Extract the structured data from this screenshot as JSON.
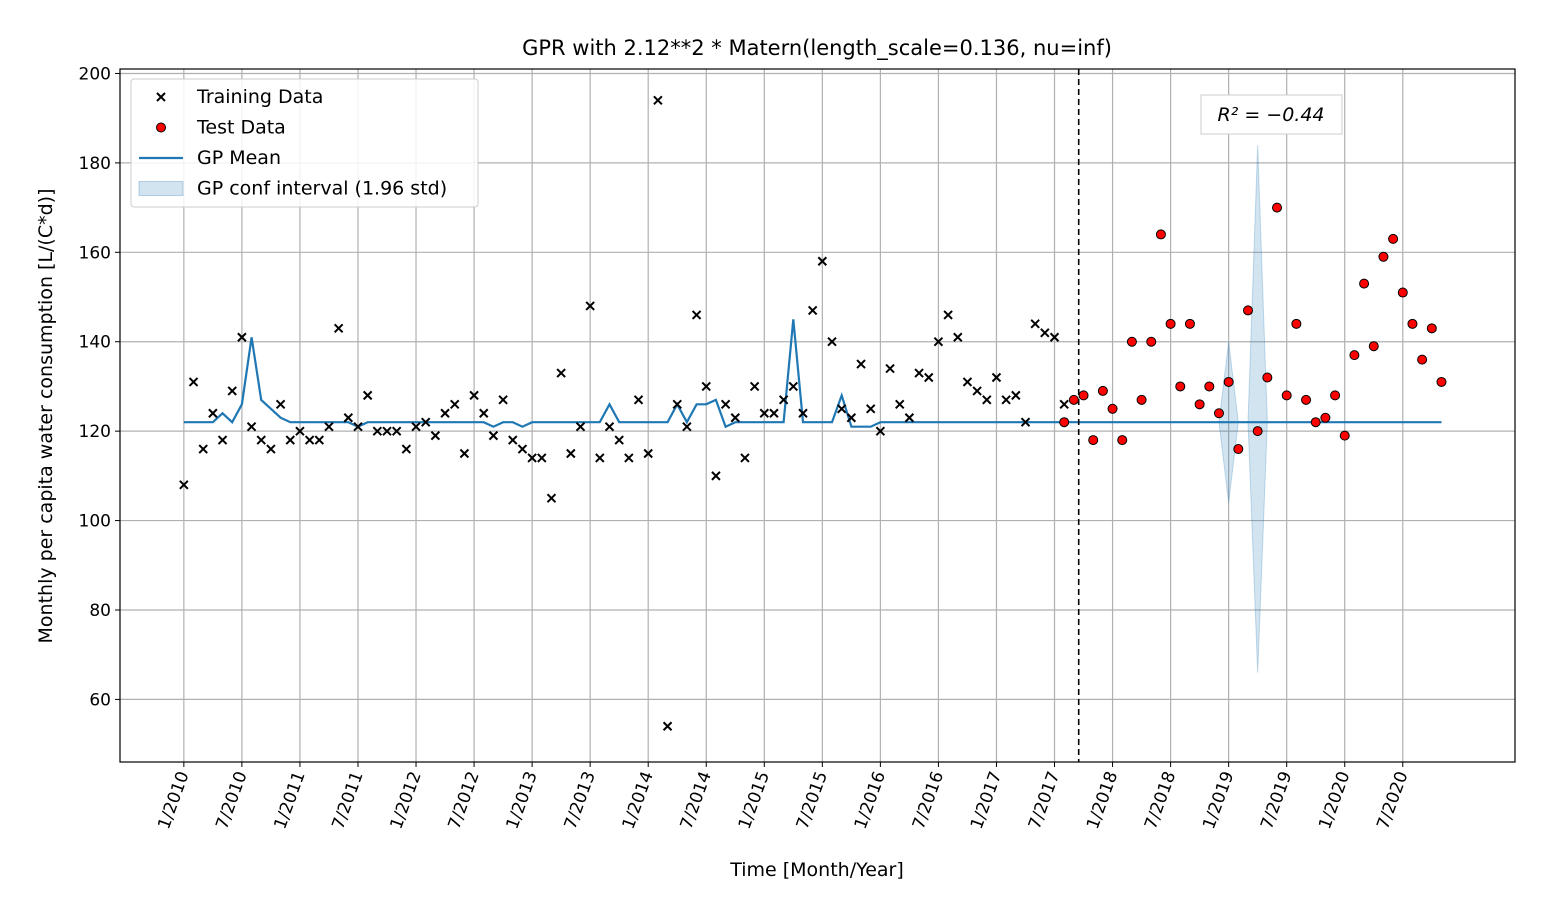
{
  "chart_data": {
    "type": "line",
    "title": "GPR with 2.12**2 * Matern(length_scale=0.136, nu=inf)",
    "xlabel": "Time [Month/Year]",
    "ylabel": "Monthly per capita water consumption [L/(C*d)]",
    "ylim": [
      46,
      201
    ],
    "y_ticks": [
      60,
      80,
      100,
      120,
      140,
      160,
      180,
      200
    ],
    "x_tick_labels": [
      "1/2010",
      "7/2010",
      "1/2011",
      "7/2011",
      "1/2012",
      "7/2012",
      "1/2013",
      "7/2013",
      "1/2014",
      "7/2014",
      "1/2015",
      "7/2015",
      "1/2016",
      "7/2016",
      "1/2017",
      "7/2017",
      "1/2018",
      "7/2018",
      "1/2019",
      "7/2019",
      "1/2020",
      "7/2020"
    ],
    "x_unit": "month index from 1/2010",
    "xlim": [
      -6.6,
      137.6
    ],
    "grid": true,
    "legend": {
      "location": "upper left",
      "entries": [
        {
          "label": "Training Data",
          "marker": "x",
          "color": "#000000"
        },
        {
          "label": "Test Data",
          "marker": "o",
          "color": "#ff0000"
        },
        {
          "label": "GP Mean",
          "marker": "line",
          "color": "#1f77b4"
        },
        {
          "label": "GP conf interval (1.96 std)",
          "marker": "patch",
          "color": "#1f77b4"
        }
      ]
    },
    "annotation": "R² = −0.44",
    "split_x": 92.5,
    "series": [
      {
        "name": "Training Data",
        "kind": "scatter",
        "start_x": 0,
        "values": [
          108,
          131,
          116,
          124,
          118,
          129,
          141,
          121,
          118,
          116,
          126,
          118,
          120,
          118,
          118,
          121,
          143,
          123,
          121,
          128,
          120,
          120,
          120,
          116,
          121,
          122,
          119,
          124,
          126,
          115,
          128,
          124,
          119,
          127,
          118,
          116,
          114,
          114,
          105,
          133,
          115,
          121,
          148,
          114,
          121,
          118,
          114,
          127,
          115,
          194,
          54,
          126,
          121,
          146,
          130,
          110,
          126,
          123,
          114,
          130,
          124,
          124,
          127,
          130,
          124,
          147,
          158,
          140,
          125,
          123,
          135,
          125,
          120,
          134,
          126,
          123,
          133,
          132,
          140,
          146,
          141,
          131,
          129,
          127,
          132,
          127,
          128,
          122,
          144,
          142,
          141,
          126
        ]
      },
      {
        "name": "Test Data",
        "kind": "scatter",
        "start_x": 91,
        "values": [
          122,
          127,
          128,
          118,
          129,
          125,
          118,
          140,
          127,
          140,
          164,
          144,
          130,
          144,
          126,
          130,
          124,
          131,
          116,
          147,
          120,
          132,
          170,
          128,
          144,
          127,
          122,
          123,
          128,
          119,
          137,
          153,
          139,
          159,
          163,
          151,
          144,
          136,
          143,
          131
        ]
      },
      {
        "name": "GP Mean",
        "kind": "line",
        "start_x": 0,
        "values": [
          122,
          122,
          122,
          122,
          124,
          122,
          126,
          141,
          127,
          125,
          123,
          122,
          122,
          122,
          122,
          122,
          122,
          122,
          121,
          122,
          122,
          122,
          122,
          122,
          122,
          122,
          122,
          122,
          122,
          122,
          122,
          122,
          121,
          122,
          122,
          121,
          122,
          122,
          122,
          122,
          122,
          122,
          122,
          122,
          126,
          122,
          122,
          122,
          122,
          122,
          122,
          126,
          122,
          126,
          126,
          127,
          121,
          122,
          122,
          122,
          122,
          122,
          122,
          145,
          122,
          122,
          122,
          122,
          128,
          121,
          121,
          121,
          122,
          122,
          122,
          122,
          122,
          122,
          122,
          122,
          122,
          122,
          122,
          122,
          122,
          122,
          122,
          122,
          122,
          122,
          122,
          122,
          122,
          122,
          122,
          122,
          122,
          122,
          122,
          122,
          122,
          122,
          122,
          122,
          122,
          122,
          122,
          122,
          122,
          122,
          122,
          122,
          122,
          122,
          122,
          122,
          122,
          122,
          122,
          122,
          122,
          122,
          122,
          122,
          122,
          122,
          122,
          122,
          122,
          122,
          122
        ],
        "lower": [],
        "upper": []
      }
    ]
  }
}
